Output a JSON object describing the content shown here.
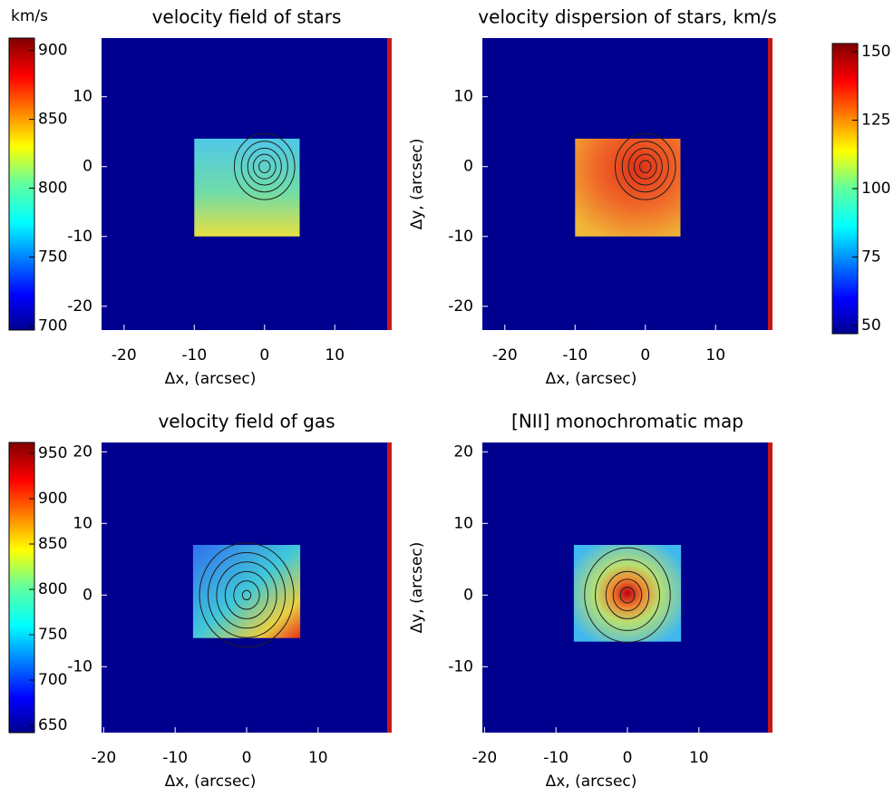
{
  "chart_data": [
    {
      "type": "heatmap",
      "title": "velocity field of stars",
      "xlabel": "Δx, (arcsec)",
      "xlim": [
        -23.2,
        18.1
      ],
      "ylim": [
        -23.4,
        18.4
      ],
      "xticks": [
        -20,
        -10,
        0,
        10
      ],
      "yticks": [
        -20,
        -10,
        0,
        10
      ],
      "colorbar": {
        "label": "km/s",
        "lim": [
          697,
          909
        ],
        "ticks": [
          700,
          750,
          800,
          850,
          900
        ],
        "side": "left"
      }
    },
    {
      "type": "heatmap",
      "title": "velocity dispersion of stars, km/s",
      "xlabel": "Δx, (arcsec)",
      "ylabel": "Δy, (arcsec)",
      "xlim": [
        -23.2,
        18.1
      ],
      "ylim": [
        -23.4,
        18.4
      ],
      "xticks": [
        -20,
        -10,
        0,
        10
      ],
      "yticks": [
        -20,
        -10,
        0,
        10
      ],
      "colorbar": {
        "lim": [
          47,
          153
        ],
        "ticks": [
          50,
          75,
          100,
          125,
          150
        ],
        "side": "right"
      }
    },
    {
      "type": "heatmap",
      "title": "velocity field of gas",
      "xlabel": "Δx, (arcsec)",
      "xlim": [
        -20.3,
        20.3
      ],
      "ylim": [
        -19.2,
        21.3
      ],
      "xticks": [
        -20,
        -10,
        0,
        10
      ],
      "yticks": [
        -10,
        0,
        10,
        20
      ],
      "colorbar": {
        "lim": [
          642,
          962
        ],
        "ticks": [
          650,
          700,
          750,
          800,
          850,
          900,
          950
        ],
        "side": "left"
      }
    },
    {
      "type": "heatmap",
      "title": "[NII] monochromatic map",
      "xlabel": "Δx, (arcsec)",
      "ylabel": "Δy, (arcsec)",
      "xlim": [
        -20.3,
        20.3
      ],
      "ylim": [
        -19.2,
        21.3
      ],
      "xticks": [
        -20,
        -10,
        0,
        10
      ],
      "yticks": [
        -10,
        0,
        10,
        20
      ]
    }
  ]
}
